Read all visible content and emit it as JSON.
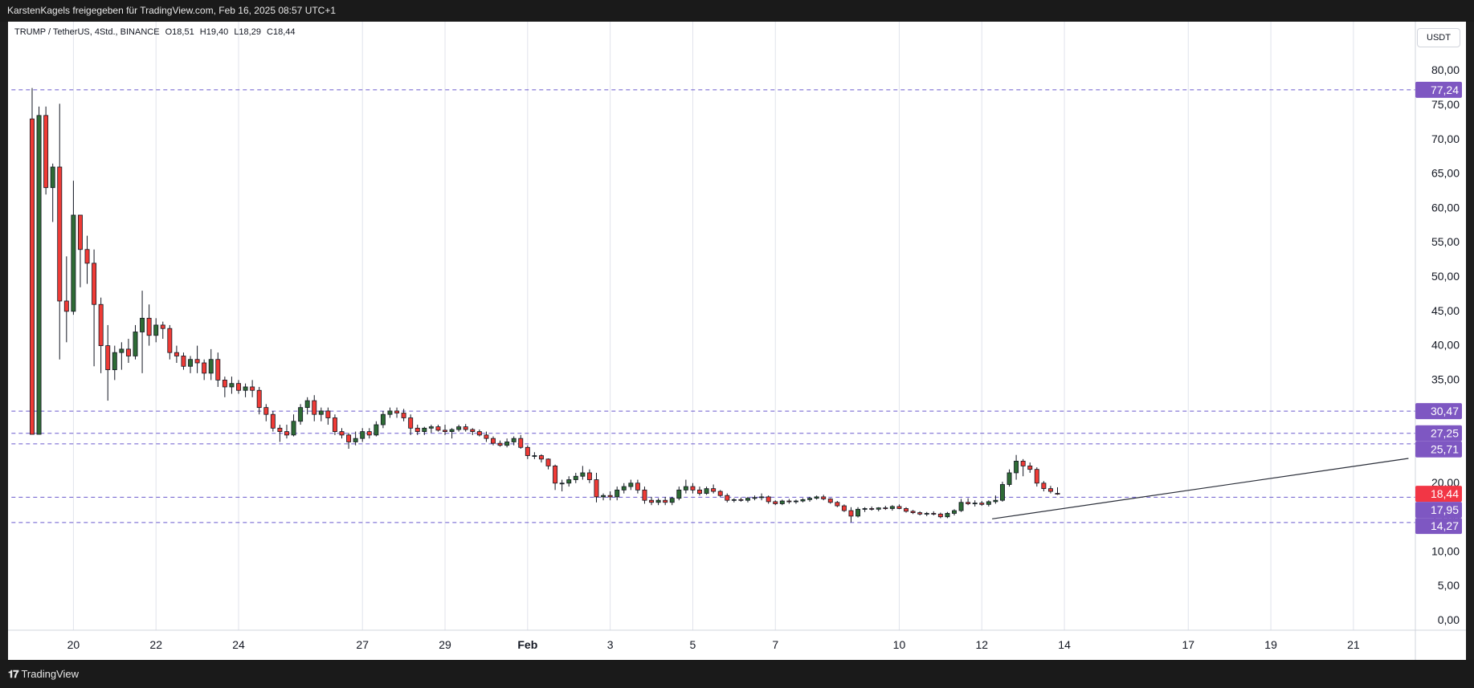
{
  "header": {
    "share_text": "KarstenKagels freigegeben für TradingView.com, Feb 16, 2025 08:57 UTC+1"
  },
  "legend": {
    "symbol": "TRUMP / TetherUS, 4Std., BINANCE",
    "open": "O18,51",
    "high": "H19,40",
    "low": "L18,29",
    "close": "C18,44"
  },
  "currency_button": "USDT",
  "footer": {
    "brand": "TradingView"
  },
  "colors": {
    "up": "#2e6b35",
    "down": "#ef3b36",
    "grid": "#e0e3eb",
    "dashed_level": "#6a5acd",
    "price_tag": "#7e57c2",
    "last_price_tag": "#f23645"
  },
  "chart_data": {
    "type": "candlestick",
    "y_axis": {
      "ticks": [
        "0,00",
        "5,00",
        "10,00",
        "15,00",
        "20,00",
        "25,00",
        "30,00",
        "35,00",
        "40,00",
        "45,00",
        "50,00",
        "55,00",
        "60,00",
        "65,00",
        "70,00",
        "75,00",
        "80,00"
      ],
      "tick_values": [
        0,
        5,
        10,
        15,
        20,
        25,
        30,
        35,
        40,
        45,
        50,
        55,
        60,
        65,
        70,
        75,
        80
      ],
      "ylim": [
        0,
        80
      ]
    },
    "x_axis": {
      "ticks": [
        {
          "label": "20",
          "t": 6
        },
        {
          "label": "22",
          "t": 18
        },
        {
          "label": "24",
          "t": 30
        },
        {
          "label": "27",
          "t": 48
        },
        {
          "label": "29",
          "t": 60
        },
        {
          "label": "Feb",
          "t": 72,
          "bold": true
        },
        {
          "label": "3",
          "t": 84
        },
        {
          "label": "5",
          "t": 96
        },
        {
          "label": "7",
          "t": 108
        },
        {
          "label": "10",
          "t": 126
        },
        {
          "label": "12",
          "t": 138
        },
        {
          "label": "14",
          "t": 150
        },
        {
          "label": "17",
          "t": 168
        },
        {
          "label": "19",
          "t": 180
        },
        {
          "label": "21",
          "t": 192
        }
      ],
      "xlim": [
        -3.5,
        201
      ]
    },
    "levels": [
      {
        "value": 77.24,
        "label": "77,24",
        "kind": "level"
      },
      {
        "value": 30.47,
        "label": "30,47",
        "kind": "level"
      },
      {
        "value": 27.25,
        "label": "27,25",
        "kind": "level"
      },
      {
        "value": 25.71,
        "label": "25,71",
        "kind": "level"
      },
      {
        "value": 18.44,
        "label": "18,44",
        "kind": "last"
      },
      {
        "value": 17.95,
        "label": "17,95",
        "kind": "level"
      },
      {
        "value": 14.27,
        "label": "14,27",
        "kind": "level"
      }
    ],
    "trendline": {
      "t1": 139.5,
      "v1": 14.8,
      "t2": 200,
      "v2": 23.6
    },
    "candles": [
      [
        73.0,
        77.5,
        27.1,
        27.1
      ],
      [
        27.1,
        74.8,
        27.1,
        73.5
      ],
      [
        73.5,
        74.8,
        62.0,
        63.0
      ],
      [
        63.0,
        66.5,
        58.0,
        66.0
      ],
      [
        66.0,
        75.2,
        38.0,
        46.5
      ],
      [
        46.5,
        53.0,
        40.5,
        45.0
      ],
      [
        45.0,
        64.0,
        44.5,
        59.0
      ],
      [
        59.0,
        59.0,
        48.5,
        54.0
      ],
      [
        54.0,
        56.0,
        49.0,
        52.0
      ],
      [
        52.0,
        54.0,
        37.0,
        46.0
      ],
      [
        46.0,
        47.0,
        36.0,
        40.0
      ],
      [
        40.0,
        43.0,
        32.0,
        36.5
      ],
      [
        36.5,
        40.0,
        35.0,
        39.0
      ],
      [
        39.0,
        40.5,
        36.5,
        39.5
      ],
      [
        39.5,
        41.0,
        37.5,
        38.5
      ],
      [
        38.5,
        43.0,
        38.0,
        42.0
      ],
      [
        42.0,
        48.0,
        36.0,
        44.0
      ],
      [
        44.0,
        46.0,
        40.0,
        41.5
      ],
      [
        41.5,
        44.0,
        40.5,
        43.0
      ],
      [
        43.0,
        43.5,
        41.0,
        42.5
      ],
      [
        42.5,
        43.0,
        38.0,
        39.0
      ],
      [
        39.0,
        40.0,
        37.5,
        38.5
      ],
      [
        38.5,
        39.0,
        36.5,
        37.0
      ],
      [
        37.0,
        38.5,
        36.0,
        38.0
      ],
      [
        38.0,
        40.0,
        36.0,
        37.5
      ],
      [
        37.5,
        38.0,
        35.0,
        36.0
      ],
      [
        36.0,
        39.5,
        35.0,
        38.0
      ],
      [
        38.0,
        39.0,
        34.0,
        35.0
      ],
      [
        35.0,
        35.5,
        32.5,
        34.0
      ],
      [
        34.0,
        35.5,
        33.0,
        34.5
      ],
      [
        34.5,
        35.0,
        33.0,
        33.5
      ],
      [
        33.5,
        34.5,
        32.5,
        34.0
      ],
      [
        34.0,
        35.0,
        32.5,
        33.5
      ],
      [
        33.5,
        34.0,
        30.0,
        31.0
      ],
      [
        31.0,
        31.5,
        29.0,
        30.0
      ],
      [
        30.0,
        30.5,
        27.5,
        28.0
      ],
      [
        28.0,
        28.5,
        26.0,
        27.5
      ],
      [
        27.5,
        28.5,
        26.5,
        27.0
      ],
      [
        27.0,
        30.0,
        26.8,
        29.0
      ],
      [
        29.0,
        31.5,
        28.5,
        31.0
      ],
      [
        31.0,
        32.5,
        30.0,
        32.0
      ],
      [
        32.0,
        32.8,
        29.0,
        30.0
      ],
      [
        30.0,
        31.0,
        29.0,
        30.5
      ],
      [
        30.5,
        31.0,
        28.5,
        29.5
      ],
      [
        29.5,
        30.0,
        27.0,
        27.5
      ],
      [
        27.5,
        28.0,
        26.5,
        27.0
      ],
      [
        27.0,
        27.3,
        25.0,
        26.0
      ],
      [
        26.0,
        27.5,
        25.5,
        26.5
      ],
      [
        26.5,
        28.0,
        26.0,
        27.5
      ],
      [
        27.5,
        28.0,
        26.5,
        27.0
      ],
      [
        27.0,
        29.0,
        26.8,
        28.5
      ],
      [
        28.5,
        30.5,
        28.0,
        30.0
      ],
      [
        30.0,
        31.0,
        29.5,
        30.5
      ],
      [
        30.5,
        31.0,
        29.5,
        30.2
      ],
      [
        30.2,
        30.8,
        29.0,
        29.5
      ],
      [
        29.5,
        30.0,
        27.0,
        28.0
      ],
      [
        28.0,
        28.5,
        27.0,
        27.5
      ],
      [
        27.5,
        28.2,
        27.0,
        28.0
      ],
      [
        28.0,
        28.5,
        27.3,
        28.2
      ],
      [
        28.2,
        28.5,
        27.5,
        27.7
      ],
      [
        27.7,
        28.5,
        27.0,
        27.5
      ],
      [
        27.5,
        28.0,
        26.5,
        27.8
      ],
      [
        27.8,
        28.5,
        27.5,
        28.2
      ],
      [
        28.2,
        28.6,
        27.5,
        27.8
      ],
      [
        27.8,
        28.0,
        27.0,
        27.5
      ],
      [
        27.5,
        27.8,
        26.8,
        27.0
      ],
      [
        27.0,
        27.5,
        26.0,
        26.5
      ],
      [
        26.5,
        26.8,
        25.5,
        25.8
      ],
      [
        25.8,
        26.2,
        25.3,
        25.5
      ],
      [
        25.5,
        26.5,
        25.2,
        26.0
      ],
      [
        26.0,
        26.8,
        25.5,
        26.5
      ],
      [
        26.5,
        27.0,
        25.0,
        25.2
      ],
      [
        25.2,
        25.5,
        23.5,
        24.0
      ],
      [
        24.0,
        24.5,
        23.5,
        24.0
      ],
      [
        24.0,
        24.2,
        23.0,
        23.5
      ],
      [
        23.5,
        23.6,
        22.0,
        22.5
      ],
      [
        22.5,
        22.7,
        19.0,
        20.0
      ],
      [
        20.0,
        20.5,
        18.8,
        20.0
      ],
      [
        20.0,
        21.0,
        19.5,
        20.5
      ],
      [
        20.5,
        21.5,
        20.0,
        21.0
      ],
      [
        21.0,
        22.5,
        20.5,
        21.5
      ],
      [
        21.5,
        22.0,
        20.0,
        20.5
      ],
      [
        20.5,
        21.5,
        17.2,
        18.0
      ],
      [
        18.0,
        18.5,
        17.5,
        18.2
      ],
      [
        18.2,
        18.8,
        17.5,
        18.0
      ],
      [
        18.0,
        19.5,
        17.5,
        19.0
      ],
      [
        19.0,
        20.0,
        18.5,
        19.5
      ],
      [
        19.5,
        20.5,
        19.0,
        20.0
      ],
      [
        20.0,
        20.5,
        18.5,
        19.0
      ],
      [
        19.0,
        19.5,
        17.0,
        17.5
      ],
      [
        17.5,
        18.0,
        16.8,
        17.2
      ],
      [
        17.2,
        17.8,
        16.8,
        17.5
      ],
      [
        17.5,
        18.0,
        16.8,
        17.2
      ],
      [
        17.2,
        18.0,
        16.8,
        17.8
      ],
      [
        17.8,
        19.5,
        17.5,
        19.0
      ],
      [
        19.0,
        20.5,
        18.5,
        19.5
      ],
      [
        19.5,
        20.0,
        18.5,
        19.0
      ],
      [
        19.0,
        19.5,
        18.2,
        18.5
      ],
      [
        18.5,
        19.5,
        18.3,
        19.2
      ],
      [
        19.2,
        19.8,
        18.5,
        18.8
      ],
      [
        18.8,
        19.0,
        18.0,
        18.2
      ],
      [
        18.2,
        18.5,
        17.2,
        17.5
      ],
      [
        17.5,
        17.8,
        17.2,
        17.6
      ],
      [
        17.6,
        17.9,
        17.3,
        17.5
      ],
      [
        17.5,
        18.0,
        17.2,
        17.8
      ],
      [
        17.8,
        18.2,
        17.5,
        17.9
      ],
      [
        17.9,
        18.5,
        17.5,
        18.0
      ],
      [
        18.0,
        18.2,
        17.0,
        17.3
      ],
      [
        17.3,
        17.5,
        16.8,
        17.0
      ],
      [
        17.0,
        17.6,
        16.8,
        17.4
      ],
      [
        17.4,
        17.7,
        17.0,
        17.3
      ],
      [
        17.3,
        17.6,
        17.0,
        17.4
      ],
      [
        17.4,
        17.8,
        17.2,
        17.6
      ],
      [
        17.6,
        18.0,
        17.3,
        17.8
      ],
      [
        17.8,
        18.2,
        17.6,
        18.0
      ],
      [
        18.0,
        18.3,
        17.5,
        17.7
      ],
      [
        17.7,
        17.8,
        17.0,
        17.2
      ],
      [
        17.2,
        17.4,
        16.5,
        16.7
      ],
      [
        16.7,
        16.9,
        15.8,
        16.0
      ],
      [
        16.0,
        16.5,
        14.3,
        15.2
      ],
      [
        15.2,
        16.5,
        15.0,
        16.2
      ],
      [
        16.2,
        16.5,
        15.8,
        16.3
      ],
      [
        16.3,
        16.6,
        16.0,
        16.2
      ],
      [
        16.2,
        16.5,
        15.9,
        16.4
      ],
      [
        16.4,
        16.7,
        16.1,
        16.3
      ],
      [
        16.3,
        16.8,
        16.0,
        16.6
      ],
      [
        16.6,
        16.9,
        16.2,
        16.3
      ],
      [
        16.3,
        16.5,
        15.7,
        15.9
      ],
      [
        15.9,
        16.1,
        15.5,
        15.7
      ],
      [
        15.7,
        15.9,
        15.3,
        15.5
      ],
      [
        15.5,
        15.8,
        15.2,
        15.6
      ],
      [
        15.6,
        15.9,
        15.3,
        15.5
      ],
      [
        15.5,
        15.7,
        14.9,
        15.1
      ],
      [
        15.1,
        15.8,
        14.9,
        15.6
      ],
      [
        15.6,
        16.2,
        15.3,
        16.0
      ],
      [
        16.0,
        17.7,
        15.8,
        17.2
      ],
      [
        17.2,
        17.8,
        16.8,
        17.0
      ],
      [
        17.0,
        17.5,
        16.6,
        17.1
      ],
      [
        17.1,
        17.4,
        16.7,
        16.9
      ],
      [
        16.9,
        17.5,
        16.6,
        17.3
      ],
      [
        17.3,
        18.2,
        17.0,
        17.5
      ],
      [
        17.5,
        20.2,
        17.3,
        19.8
      ],
      [
        19.8,
        22.0,
        19.5,
        21.5
      ],
      [
        21.5,
        24.1,
        20.5,
        23.2
      ],
      [
        23.2,
        23.5,
        21.0,
        22.5
      ],
      [
        22.5,
        23.0,
        21.5,
        22.0
      ],
      [
        22.0,
        22.3,
        19.5,
        20.0
      ],
      [
        20.0,
        20.3,
        18.8,
        19.2
      ],
      [
        19.2,
        19.6,
        18.5,
        18.8
      ],
      [
        18.51,
        19.4,
        18.29,
        18.44
      ]
    ]
  }
}
